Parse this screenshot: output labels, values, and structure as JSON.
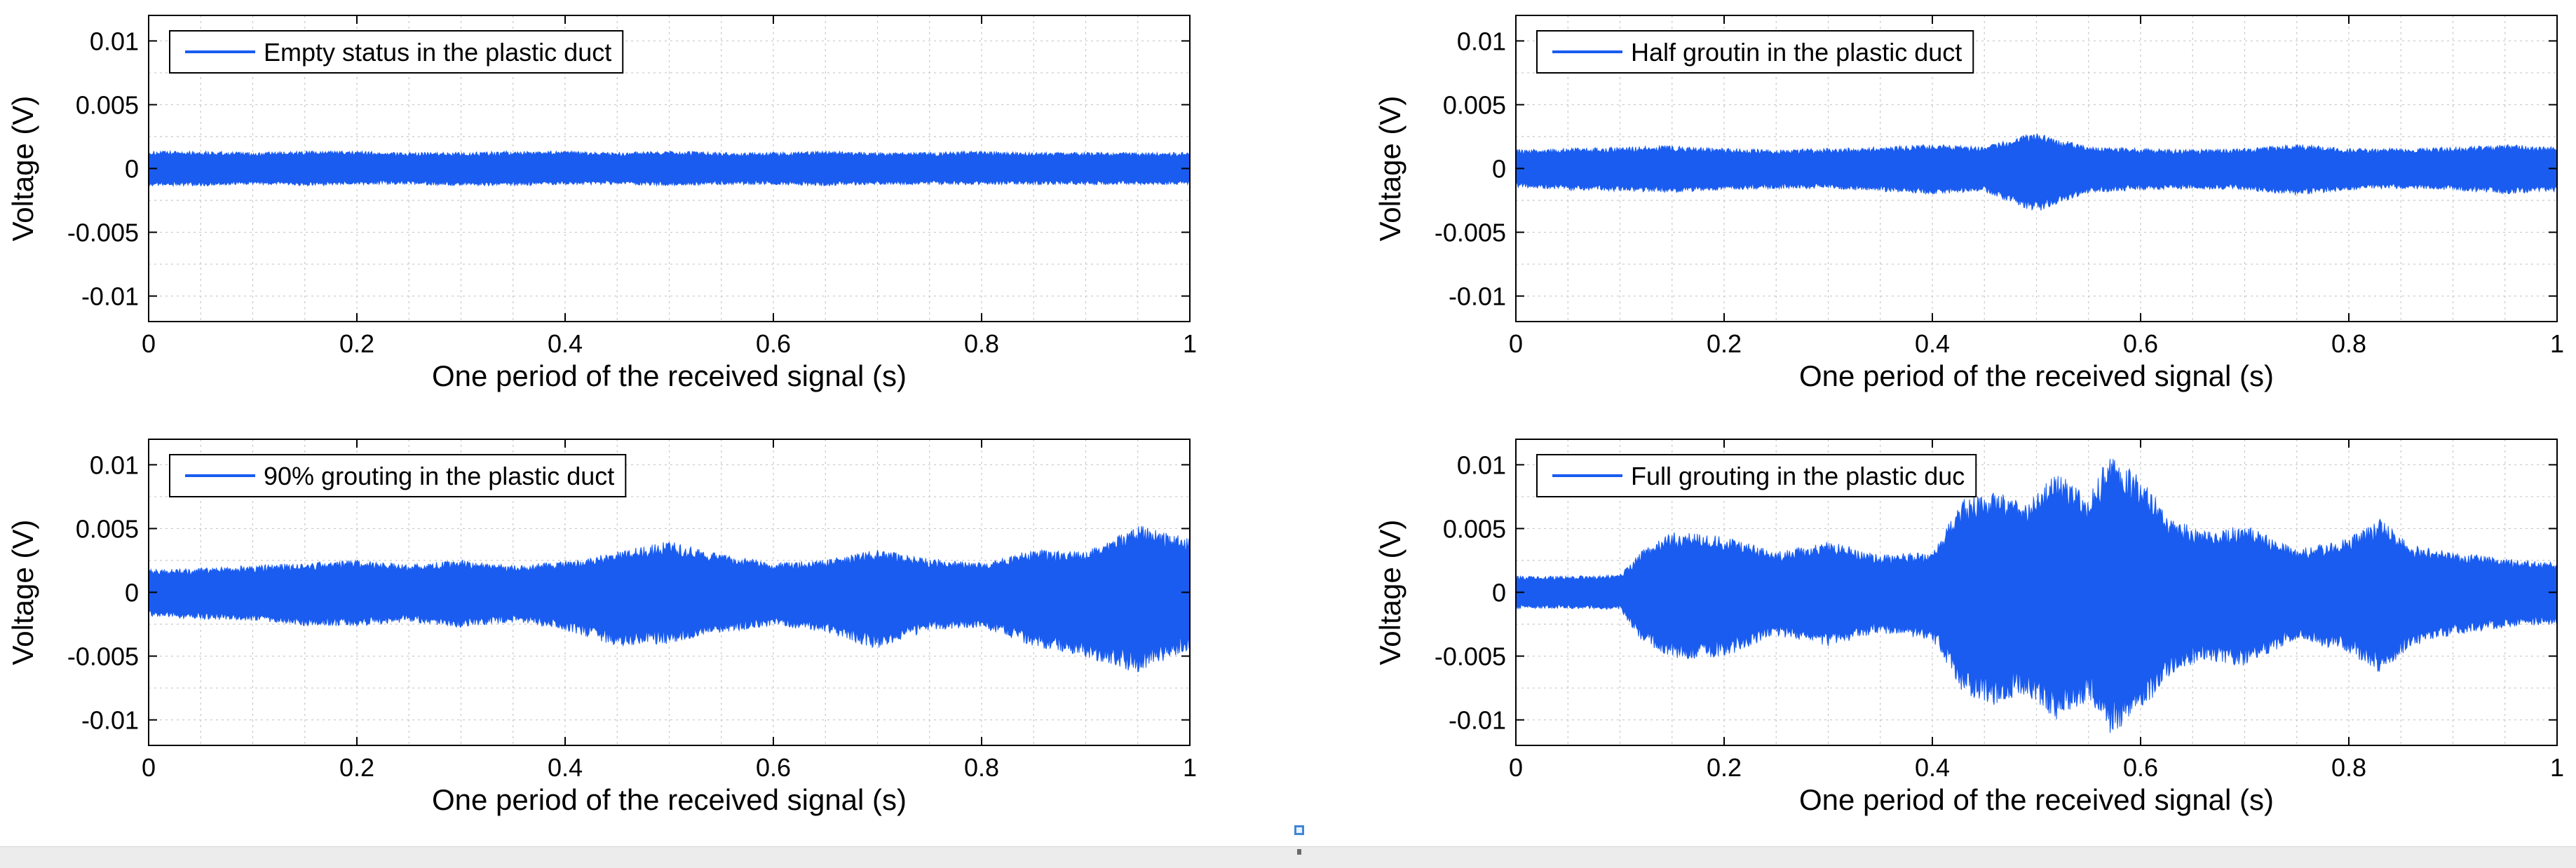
{
  "colors": {
    "signal": "#1a5cf0",
    "grid": "#c8c8c8",
    "axis": "#000000"
  },
  "chart_data": [
    {
      "type": "line",
      "xlabel": "One period of the received signal (s)",
      "ylabel": "Voltage (V)",
      "xlim": [
        0,
        1
      ],
      "ylim": [
        -0.012,
        0.012
      ],
      "xticks": [
        "0",
        "0.2",
        "0.4",
        "0.6",
        "0.8",
        "1"
      ],
      "yticks": [
        "-0.01",
        "-0.005",
        "0",
        "0.005",
        "0.01"
      ],
      "grid": true,
      "legend_position": "top-left",
      "series": [
        {
          "name": "Empty status in the plastic duct",
          "x": [
            0,
            0.05,
            0.1,
            0.15,
            0.2,
            0.25,
            0.3,
            0.35,
            0.4,
            0.45,
            0.5,
            0.55,
            0.6,
            0.65,
            0.7,
            0.75,
            0.8,
            0.85,
            0.9,
            0.95,
            1
          ],
          "upper": [
            0.0013,
            0.0013,
            0.0012,
            0.0013,
            0.0013,
            0.0012,
            0.0012,
            0.0013,
            0.0013,
            0.0012,
            0.0013,
            0.0012,
            0.0012,
            0.0013,
            0.0012,
            0.0012,
            0.0013,
            0.0012,
            0.0012,
            0.0012,
            0.0012
          ],
          "lower": [
            -0.0013,
            -0.0013,
            -0.0012,
            -0.0013,
            -0.0012,
            -0.0012,
            -0.0013,
            -0.0013,
            -0.0012,
            -0.0012,
            -0.0013,
            -0.0012,
            -0.0012,
            -0.0013,
            -0.0012,
            -0.0012,
            -0.0012,
            -0.0012,
            -0.0012,
            -0.0012,
            -0.0012
          ]
        }
      ]
    },
    {
      "type": "line",
      "xlabel": "One period of the received signal (s)",
      "ylabel": "Voltage (V)",
      "xlim": [
        0,
        1
      ],
      "ylim": [
        -0.012,
        0.012
      ],
      "xticks": [
        "0",
        "0.2",
        "0.4",
        "0.6",
        "0.8",
        "1"
      ],
      "yticks": [
        "-0.01",
        "-0.005",
        "0",
        "0.005",
        "0.01"
      ],
      "grid": true,
      "legend_position": "top-left",
      "series": [
        {
          "name": "Half groutin in the plastic duct",
          "x": [
            0,
            0.05,
            0.1,
            0.15,
            0.2,
            0.25,
            0.3,
            0.35,
            0.4,
            0.45,
            0.5,
            0.55,
            0.6,
            0.65,
            0.7,
            0.75,
            0.8,
            0.85,
            0.9,
            0.95,
            1
          ],
          "upper": [
            0.0014,
            0.0015,
            0.0016,
            0.0017,
            0.0015,
            0.0014,
            0.0015,
            0.0016,
            0.0018,
            0.0016,
            0.0027,
            0.0016,
            0.0015,
            0.0014,
            0.0015,
            0.0018,
            0.0015,
            0.0015,
            0.0016,
            0.0018,
            0.0016
          ],
          "lower": [
            -0.0014,
            -0.0016,
            -0.0017,
            -0.0018,
            -0.0016,
            -0.0015,
            -0.0015,
            -0.0017,
            -0.0019,
            -0.0017,
            -0.0033,
            -0.0018,
            -0.0016,
            -0.0015,
            -0.0016,
            -0.002,
            -0.0016,
            -0.0015,
            -0.0016,
            -0.0019,
            -0.0017
          ]
        }
      ]
    },
    {
      "type": "line",
      "xlabel": "One period of the received signal (s)",
      "ylabel": "Voltage (V)",
      "xlim": [
        0,
        1
      ],
      "ylim": [
        -0.012,
        0.012
      ],
      "xticks": [
        "0",
        "0.2",
        "0.4",
        "0.6",
        "0.8",
        "1"
      ],
      "yticks": [
        "-0.01",
        "-0.005",
        "0",
        "0.005",
        "0.01"
      ],
      "grid": true,
      "legend_position": "top-left",
      "series": [
        {
          "name": "90% grouting in the plastic duct",
          "x": [
            0,
            0.05,
            0.1,
            0.15,
            0.2,
            0.25,
            0.3,
            0.35,
            0.4,
            0.45,
            0.5,
            0.55,
            0.6,
            0.65,
            0.7,
            0.75,
            0.8,
            0.85,
            0.9,
            0.95,
            1
          ],
          "upper": [
            0.0017,
            0.0018,
            0.002,
            0.0022,
            0.0024,
            0.0021,
            0.0024,
            0.002,
            0.0023,
            0.003,
            0.0038,
            0.0028,
            0.0022,
            0.0024,
            0.0032,
            0.0025,
            0.0022,
            0.0032,
            0.003,
            0.005,
            0.004
          ],
          "lower": [
            -0.0018,
            -0.002,
            -0.0021,
            -0.0025,
            -0.0025,
            -0.0022,
            -0.0026,
            -0.0022,
            -0.0028,
            -0.004,
            -0.0038,
            -0.003,
            -0.0025,
            -0.003,
            -0.0042,
            -0.0028,
            -0.0026,
            -0.004,
            -0.0048,
            -0.006,
            -0.0042
          ]
        }
      ]
    },
    {
      "type": "line",
      "xlabel": "One period of the received signal (s)",
      "ylabel": "Voltage (V)",
      "xlim": [
        0,
        1
      ],
      "ylim": [
        -0.012,
        0.012
      ],
      "xticks": [
        "0",
        "0.2",
        "0.4",
        "0.6",
        "0.8",
        "1"
      ],
      "yticks": [
        "-0.01",
        "-0.005",
        "0",
        "0.005",
        "0.01"
      ],
      "grid": true,
      "legend_position": "top-left",
      "series": [
        {
          "name": "Full grouting in the plastic duc",
          "x": [
            0,
            0.05,
            0.1,
            0.12,
            0.15,
            0.2,
            0.25,
            0.3,
            0.35,
            0.4,
            0.43,
            0.46,
            0.49,
            0.52,
            0.55,
            0.57,
            0.6,
            0.63,
            0.66,
            0.7,
            0.75,
            0.8,
            0.83,
            0.86,
            0.9,
            0.95,
            1
          ],
          "upper": [
            0.0012,
            0.0012,
            0.0013,
            0.003,
            0.0045,
            0.0042,
            0.003,
            0.0038,
            0.0028,
            0.003,
            0.007,
            0.0075,
            0.0065,
            0.009,
            0.007,
            0.0103,
            0.0085,
            0.0055,
            0.0045,
            0.005,
            0.0032,
            0.004,
            0.0055,
            0.0035,
            0.003,
            0.0025,
            0.0022
          ],
          "lower": [
            -0.0012,
            -0.0012,
            -0.0013,
            -0.0035,
            -0.005,
            -0.0048,
            -0.0032,
            -0.004,
            -0.003,
            -0.0035,
            -0.0075,
            -0.0085,
            -0.0075,
            -0.0095,
            -0.008,
            -0.0105,
            -0.009,
            -0.006,
            -0.005,
            -0.0055,
            -0.0035,
            -0.0045,
            -0.006,
            -0.004,
            -0.0032,
            -0.0026,
            -0.0023
          ]
        }
      ]
    }
  ]
}
